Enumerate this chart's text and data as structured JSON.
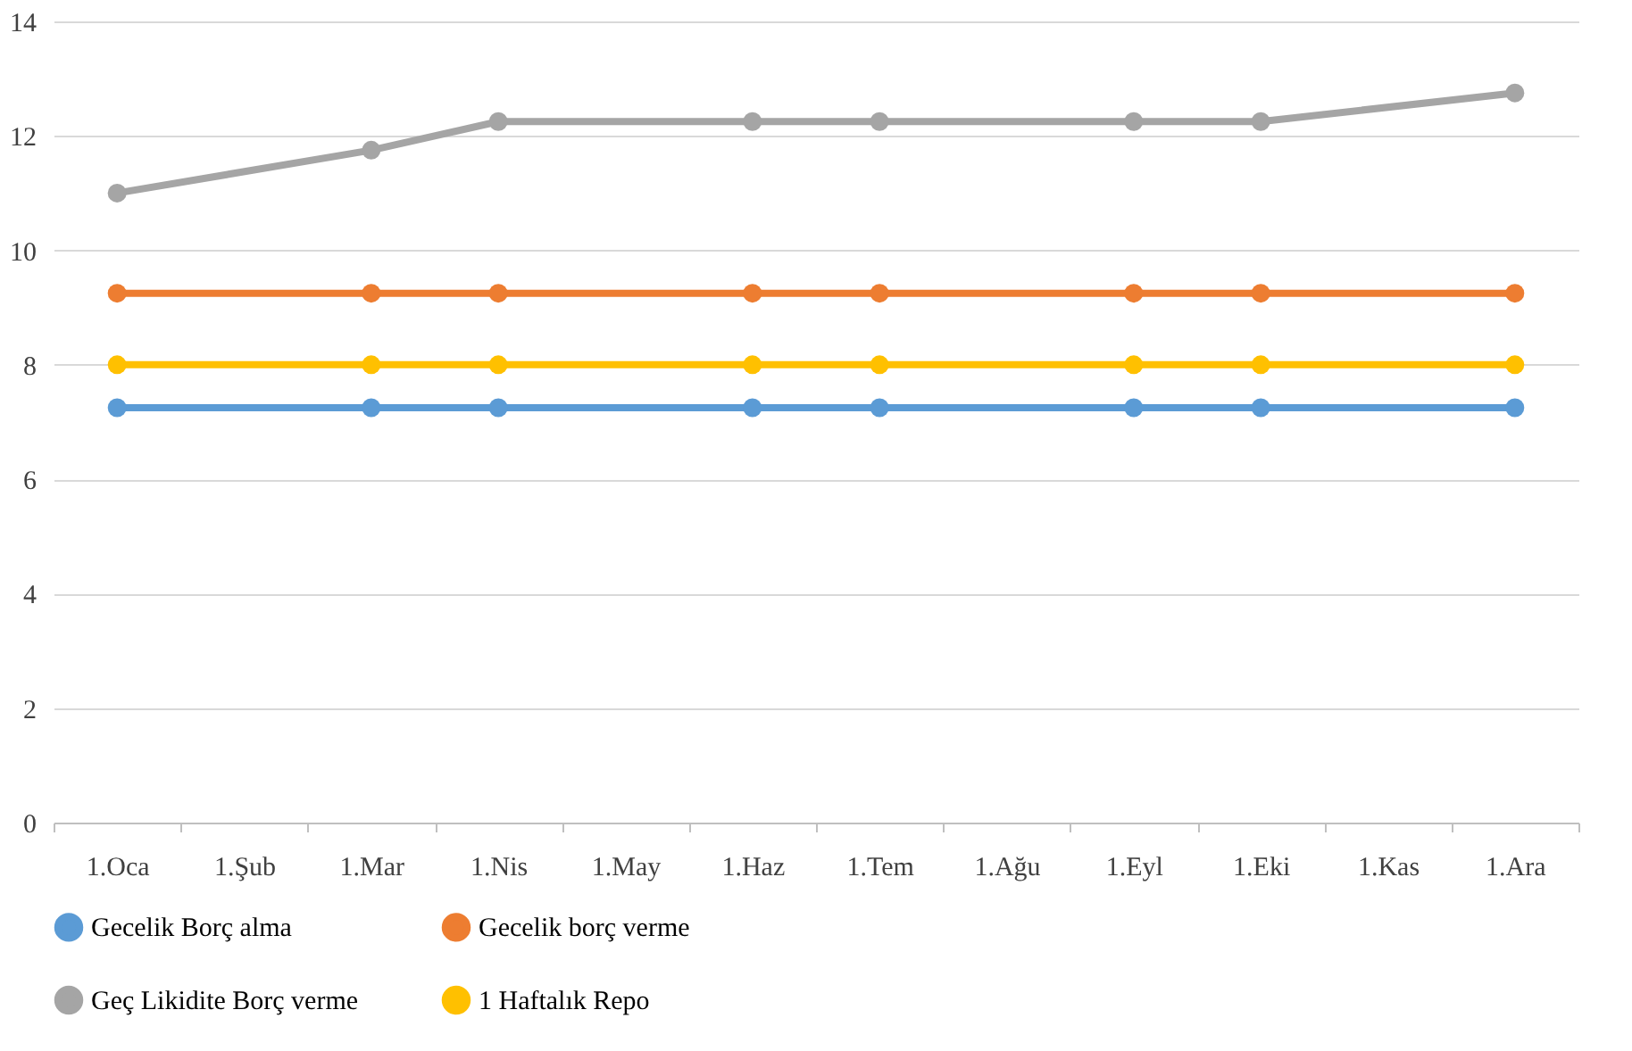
{
  "chart_data": {
    "type": "line",
    "categories": [
      "1.Oca",
      "1.Şub",
      "1.Mar",
      "1.Nis",
      "1.May",
      "1.Haz",
      "1.Tem",
      "1.Ağu",
      "1.Eyl",
      "1.Eki",
      "1.Kas",
      "1.Ara"
    ],
    "series": [
      {
        "name": "Gecelik Borç alma",
        "color": "#5b9bd5",
        "values": [
          7.25,
          null,
          7.25,
          7.25,
          null,
          7.25,
          7.25,
          null,
          7.25,
          7.25,
          null,
          7.25
        ]
      },
      {
        "name": "Gecelik borç verme",
        "color": "#ed7d31",
        "values": [
          9.25,
          null,
          9.25,
          9.25,
          null,
          9.25,
          9.25,
          null,
          9.25,
          9.25,
          null,
          9.25
        ]
      },
      {
        "name": "Geç Likidite Borç verme",
        "color": "#a5a5a5",
        "values": [
          11,
          null,
          11.75,
          12.25,
          null,
          12.25,
          12.25,
          null,
          12.25,
          12.25,
          null,
          12.75
        ]
      },
      {
        "name": "1 Haftalık Repo",
        "color": "#ffc000",
        "values": [
          8,
          null,
          8,
          8,
          null,
          8,
          8,
          null,
          8,
          8,
          null,
          8
        ]
      }
    ],
    "ylim": [
      0,
      14
    ],
    "yticks": [
      0,
      2,
      4,
      6,
      8,
      10,
      12,
      14
    ],
    "grid": "y",
    "legend": "bottom",
    "marker": "circle",
    "line_style": "solid"
  }
}
